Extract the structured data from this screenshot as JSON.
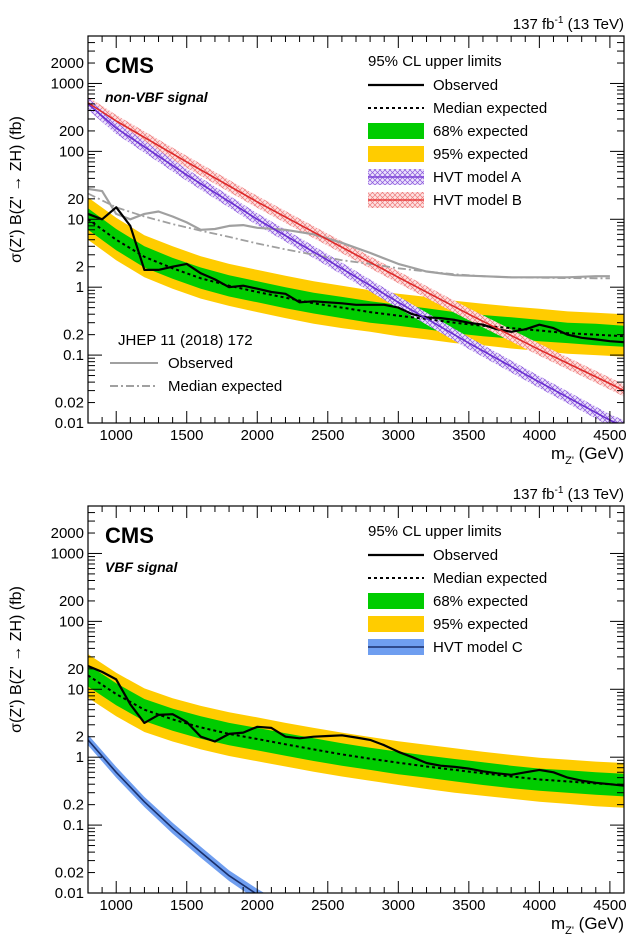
{
  "chart_data": [
    {
      "type": "line",
      "lumi": "137 fb",
      "lumi_sup": "-1",
      "energy": "(13 TeV)",
      "experiment": "CMS",
      "signal_label": "non-VBF signal",
      "ylabel": "σ(Z') B(Z' → ZH) (fb)",
      "xlabel": "m",
      "xlabel_sub": "Z'",
      "xlabel_unit": "(GeV)",
      "xlim": [
        800,
        4600
      ],
      "ylim": [
        0.01,
        5000
      ],
      "yscale": "log",
      "xticks": [
        1000,
        1500,
        2000,
        2500,
        3000,
        3500,
        4000,
        4500
      ],
      "yticks": [
        0.01,
        0.02,
        0.1,
        0.2,
        1,
        2,
        10,
        20,
        100,
        200,
        1000,
        2000
      ],
      "yticklabels": [
        "0.01",
        "0.02",
        "0.1",
        "0.2",
        "1",
        "2",
        "10",
        "20",
        "100",
        "200",
        "1000",
        "2000"
      ],
      "legend_title": "95% CL upper limits",
      "legend_position": "top-right",
      "legend": [
        {
          "name": "Observed",
          "kind": "line-solid",
          "color": "#000000"
        },
        {
          "name": "Median expected",
          "kind": "line-dashed",
          "color": "#000000"
        },
        {
          "name": "68% expected",
          "kind": "band",
          "color": "#00cc00"
        },
        {
          "name": "95% expected",
          "kind": "band",
          "color": "#ffcc00"
        },
        {
          "name": "HVT model A",
          "kind": "hatch",
          "color": "#7a3fd6"
        },
        {
          "name": "HVT model B",
          "kind": "hatch",
          "color": "#e83a3a"
        }
      ],
      "secondary_legend_title": "JHEP 11 (2018) 172",
      "secondary_legend_position": "bottom-left",
      "secondary_legend": [
        {
          "name": "Observed",
          "kind": "line-solid",
          "color": "#a0a0a0"
        },
        {
          "name": "Median expected",
          "kind": "line-dashdot",
          "color": "#a0a0a0"
        }
      ],
      "series": [
        {
          "id": "observed",
          "x": [
            800,
            900,
            1000,
            1100,
            1200,
            1300,
            1400,
            1500,
            1600,
            1700,
            1800,
            1900,
            2000,
            2100,
            2200,
            2300,
            2400,
            2500,
            2600,
            2700,
            2800,
            2900,
            3000,
            3100,
            3200,
            3300,
            3400,
            3500,
            3600,
            3700,
            3800,
            3900,
            4000,
            4100,
            4200,
            4300,
            4400,
            4500,
            4600
          ],
          "y": [
            12,
            10,
            15,
            8,
            1.8,
            1.8,
            2.0,
            2.2,
            1.6,
            1.3,
            1.0,
            1.05,
            0.95,
            0.85,
            0.8,
            0.6,
            0.62,
            0.6,
            0.58,
            0.55,
            0.55,
            0.55,
            0.5,
            0.4,
            0.36,
            0.35,
            0.33,
            0.3,
            0.28,
            0.24,
            0.22,
            0.24,
            0.28,
            0.25,
            0.2,
            0.18,
            0.17,
            0.16,
            0.155
          ]
        },
        {
          "id": "expected",
          "x": [
            800,
            1000,
            1200,
            1400,
            1600,
            1800,
            2000,
            2200,
            2400,
            2600,
            2800,
            3000,
            3200,
            3400,
            3600,
            3800,
            4000,
            4200,
            4400,
            4600
          ],
          "y": [
            10,
            5.0,
            2.8,
            1.9,
            1.35,
            1.05,
            0.85,
            0.7,
            0.58,
            0.5,
            0.43,
            0.38,
            0.34,
            0.3,
            0.27,
            0.25,
            0.23,
            0.21,
            0.2,
            0.19
          ]
        },
        {
          "id": "band68",
          "x": [
            800,
            1000,
            1200,
            1400,
            1600,
            1800,
            2000,
            2200,
            2400,
            2600,
            2800,
            3000,
            3200,
            3400,
            3600,
            3800,
            4000,
            4200,
            4400,
            4600
          ],
          "low": [
            7.0,
            3.5,
            1.95,
            1.33,
            0.95,
            0.73,
            0.6,
            0.49,
            0.41,
            0.35,
            0.3,
            0.27,
            0.24,
            0.21,
            0.19,
            0.175,
            0.16,
            0.15,
            0.14,
            0.133
          ],
          "high": [
            14.5,
            7.2,
            4.0,
            2.7,
            1.95,
            1.5,
            1.22,
            1.0,
            0.83,
            0.72,
            0.62,
            0.55,
            0.49,
            0.43,
            0.39,
            0.36,
            0.33,
            0.3,
            0.29,
            0.27
          ]
        },
        {
          "id": "band95",
          "x": [
            800,
            1000,
            1200,
            1400,
            1600,
            1800,
            2000,
            2200,
            2400,
            2600,
            2800,
            3000,
            3200,
            3400,
            3600,
            3800,
            4000,
            4200,
            4400,
            4600
          ],
          "low": [
            5.0,
            2.5,
            1.4,
            0.95,
            0.68,
            0.53,
            0.43,
            0.35,
            0.29,
            0.25,
            0.22,
            0.19,
            0.17,
            0.15,
            0.14,
            0.125,
            0.115,
            0.105,
            0.1,
            0.095
          ],
          "high": [
            21,
            10.5,
            5.8,
            4.0,
            2.85,
            2.2,
            1.8,
            1.47,
            1.22,
            1.05,
            0.9,
            0.8,
            0.72,
            0.63,
            0.57,
            0.52,
            0.48,
            0.44,
            0.42,
            0.4
          ]
        },
        {
          "id": "hvtA",
          "x": [
            800,
            1000,
            1500,
            2000,
            2500,
            3000,
            3500,
            4000,
            4500,
            4600
          ],
          "y": [
            500,
            220,
            45,
            10,
            2.5,
            0.6,
            0.15,
            0.04,
            0.011,
            0.009
          ]
        },
        {
          "id": "hvtB",
          "x": [
            800,
            1000,
            1500,
            2000,
            2500,
            3000,
            3500,
            4000,
            4500,
            4600
          ],
          "y": [
            520,
            280,
            70,
            18,
            5,
            1.4,
            0.4,
            0.12,
            0.038,
            0.03
          ]
        },
        {
          "id": "prev_observed",
          "x": [
            800,
            900,
            1000,
            1100,
            1200,
            1300,
            1400,
            1500,
            1600,
            1700,
            1800,
            1900,
            2000,
            2200,
            2400,
            2600,
            2800,
            3000,
            3200,
            3400,
            3600,
            3800,
            4000,
            4200,
            4400,
            4500
          ],
          "y": [
            28,
            26,
            12,
            10,
            12,
            13,
            11,
            9,
            7,
            7.2,
            8.0,
            8.2,
            7.5,
            7.0,
            6.0,
            4.5,
            3.2,
            2.2,
            1.7,
            1.5,
            1.45,
            1.4,
            1.4,
            1.4,
            1.45,
            1.45
          ]
        },
        {
          "id": "prev_expected",
          "x": [
            800,
            1000,
            1200,
            1400,
            1600,
            1800,
            2000,
            2200,
            2400,
            2600,
            2800,
            3000,
            3200,
            3400,
            3600,
            3800,
            4000,
            4200,
            4400,
            4500
          ],
          "y": [
            24,
            15,
            11,
            8.5,
            6.8,
            5.5,
            4.4,
            3.6,
            3.0,
            2.5,
            2.2,
            1.9,
            1.7,
            1.55,
            1.45,
            1.4,
            1.38,
            1.36,
            1.35,
            1.35
          ]
        }
      ]
    },
    {
      "type": "line",
      "lumi": "137 fb",
      "lumi_sup": "-1",
      "energy": "(13 TeV)",
      "experiment": "CMS",
      "signal_label": "VBF signal",
      "ylabel": "σ(Z') B(Z' → ZH) (fb)",
      "xlabel": "m",
      "xlabel_sub": "Z'",
      "xlabel_unit": "(GeV)",
      "xlim": [
        800,
        4600
      ],
      "ylim": [
        0.01,
        5000
      ],
      "yscale": "log",
      "xticks": [
        1000,
        1500,
        2000,
        2500,
        3000,
        3500,
        4000,
        4500
      ],
      "yticks": [
        0.01,
        0.02,
        0.1,
        0.2,
        1,
        2,
        10,
        20,
        100,
        200,
        1000,
        2000
      ],
      "yticklabels": [
        "0.01",
        "0.02",
        "0.1",
        "0.2",
        "1",
        "2",
        "10",
        "20",
        "100",
        "200",
        "1000",
        "2000"
      ],
      "legend_title": "95% CL upper limits",
      "legend_position": "top-right",
      "legend": [
        {
          "name": "Observed",
          "kind": "line-solid",
          "color": "#000000"
        },
        {
          "name": "Median expected",
          "kind": "line-dashed",
          "color": "#000000"
        },
        {
          "name": "68% expected",
          "kind": "band",
          "color": "#00cc00"
        },
        {
          "name": "95% expected",
          "kind": "band",
          "color": "#ffcc00"
        },
        {
          "name": "HVT model C",
          "kind": "blue-band",
          "color": "#4a86e8"
        }
      ],
      "series": [
        {
          "id": "observed",
          "x": [
            800,
            900,
            1000,
            1100,
            1200,
            1300,
            1400,
            1500,
            1600,
            1700,
            1800,
            1900,
            2000,
            2100,
            2200,
            2300,
            2400,
            2500,
            2600,
            2700,
            2800,
            2900,
            3000,
            3100,
            3200,
            3300,
            3400,
            3500,
            3600,
            3700,
            3800,
            3900,
            4000,
            4100,
            4200,
            4300,
            4400,
            4500,
            4600
          ],
          "y": [
            22,
            18,
            14,
            6,
            3.2,
            4.2,
            4.3,
            3.3,
            2.0,
            1.7,
            2.2,
            2.3,
            2.8,
            2.7,
            2.0,
            1.9,
            2.0,
            2.05,
            2.1,
            1.95,
            1.8,
            1.5,
            1.2,
            1.0,
            0.82,
            0.75,
            0.72,
            0.68,
            0.62,
            0.58,
            0.55,
            0.6,
            0.65,
            0.6,
            0.5,
            0.45,
            0.42,
            0.4,
            0.38
          ]
        },
        {
          "id": "expected",
          "x": [
            800,
            1000,
            1200,
            1400,
            1600,
            1800,
            2000,
            2200,
            2400,
            2600,
            2800,
            3000,
            3200,
            3400,
            3600,
            3800,
            4000,
            4200,
            4400,
            4600
          ],
          "y": [
            16,
            8.5,
            5.0,
            3.6,
            2.75,
            2.2,
            1.85,
            1.55,
            1.3,
            1.1,
            0.95,
            0.83,
            0.73,
            0.65,
            0.58,
            0.52,
            0.47,
            0.44,
            0.41,
            0.39
          ]
        },
        {
          "id": "band68",
          "x": [
            800,
            1000,
            1200,
            1400,
            1600,
            1800,
            2000,
            2200,
            2400,
            2600,
            2800,
            3000,
            3200,
            3400,
            3600,
            3800,
            4000,
            4200,
            4400,
            4600
          ],
          "low": [
            11,
            5.8,
            3.4,
            2.45,
            1.87,
            1.5,
            1.26,
            1.05,
            0.88,
            0.75,
            0.65,
            0.56,
            0.5,
            0.44,
            0.39,
            0.35,
            0.32,
            0.3,
            0.28,
            0.265
          ],
          "high": [
            23,
            12.3,
            7.2,
            5.2,
            4.0,
            3.2,
            2.7,
            2.25,
            1.9,
            1.6,
            1.38,
            1.2,
            1.06,
            0.94,
            0.84,
            0.75,
            0.68,
            0.64,
            0.6,
            0.57
          ]
        },
        {
          "id": "band95",
          "x": [
            800,
            1000,
            1200,
            1400,
            1600,
            1800,
            2000,
            2200,
            2400,
            2600,
            2800,
            3000,
            3200,
            3400,
            3600,
            3800,
            4000,
            4200,
            4400,
            4600
          ],
          "low": [
            7.5,
            4.0,
            2.35,
            1.7,
            1.3,
            1.04,
            0.87,
            0.73,
            0.61,
            0.52,
            0.45,
            0.39,
            0.34,
            0.3,
            0.27,
            0.245,
            0.22,
            0.205,
            0.19,
            0.18
          ],
          "high": [
            33,
            17.5,
            10.3,
            7.4,
            5.7,
            4.6,
            3.85,
            3.2,
            2.7,
            2.3,
            1.98,
            1.72,
            1.52,
            1.35,
            1.2,
            1.08,
            0.98,
            0.92,
            0.86,
            0.82
          ]
        },
        {
          "id": "hvtC",
          "x": [
            800,
            1000,
            1200,
            1400,
            1600,
            1800,
            2000,
            2100
          ],
          "y": [
            1.8,
            0.6,
            0.22,
            0.09,
            0.04,
            0.018,
            0.0095,
            0.0072
          ],
          "low": [
            1.5,
            0.5,
            0.185,
            0.075,
            0.033,
            0.015,
            0.0078,
            0.006
          ],
          "high": [
            2.15,
            0.72,
            0.26,
            0.108,
            0.048,
            0.0215,
            0.0115,
            0.0087
          ]
        }
      ]
    }
  ]
}
